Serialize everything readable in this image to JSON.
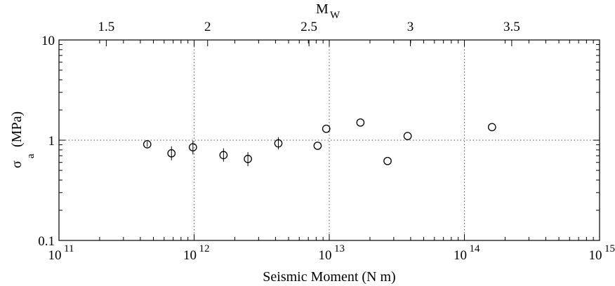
{
  "chart_data": {
    "type": "scatter",
    "xlabel": "Seismic Moment (N   m)",
    "ylabel_main": "σ",
    "ylabel_sub": "a",
    "ylabel_unit": "(MPa)",
    "top_axis_label_main": "M",
    "top_axis_label_sub": "W",
    "x_scale": "log",
    "y_scale": "log",
    "xlim": [
      100000000000.0,
      1000000000000000.0
    ],
    "ylim": [
      0.1,
      10
    ],
    "x_ticks": [
      {
        "value": 100000000000.0,
        "base": "10",
        "exp": "11"
      },
      {
        "value": 1000000000000.0,
        "base": "10",
        "exp": "12"
      },
      {
        "value": 10000000000000.0,
        "base": "10",
        "exp": "13"
      },
      {
        "value": 100000000000000.0,
        "base": "10",
        "exp": "14"
      },
      {
        "value": 1000000000000000.0,
        "base": "10",
        "exp": "15"
      }
    ],
    "y_ticks": [
      {
        "value": 0.1,
        "label": "0.1"
      },
      {
        "value": 1,
        "label": "1"
      },
      {
        "value": 10,
        "label": "10"
      }
    ],
    "top_ticks": [
      {
        "mw": 1.5,
        "label": "1.5"
      },
      {
        "mw": 2,
        "label": "2"
      },
      {
        "mw": 2.5,
        "label": "2.5"
      },
      {
        "mw": 3,
        "label": "3"
      },
      {
        "mw": 3.5,
        "label": "3.5"
      }
    ],
    "grid": "dotted at major ticks",
    "points": [
      {
        "x": 450000000000.0,
        "y": 0.91,
        "err_lo": 0.86,
        "err_hi": 0.97
      },
      {
        "x": 680000000000.0,
        "y": 0.74,
        "err_lo": 0.63,
        "err_hi": 0.87
      },
      {
        "x": 980000000000.0,
        "y": 0.85,
        "err_lo": 0.72,
        "err_hi": 0.99
      },
      {
        "x": 1650000000000.0,
        "y": 0.71,
        "err_lo": 0.61,
        "err_hi": 0.83
      },
      {
        "x": 2500000000000.0,
        "y": 0.65,
        "err_lo": 0.55,
        "err_hi": 0.76
      },
      {
        "x": 4200000000000.0,
        "y": 0.93,
        "err_lo": 0.81,
        "err_hi": 1.07
      },
      {
        "x": 8200000000000.0,
        "y": 0.88,
        "err_lo": null,
        "err_hi": null
      },
      {
        "x": 9500000000000.0,
        "y": 1.3,
        "err_lo": null,
        "err_hi": null
      },
      {
        "x": 17000000000000.0,
        "y": 1.5,
        "err_lo": null,
        "err_hi": null
      },
      {
        "x": 27000000000000.0,
        "y": 0.62,
        "err_lo": null,
        "err_hi": null
      },
      {
        "x": 38000000000000.0,
        "y": 1.1,
        "err_lo": null,
        "err_hi": null
      },
      {
        "x": 160000000000000.0,
        "y": 1.35,
        "err_lo": null,
        "err_hi": null
      }
    ]
  }
}
